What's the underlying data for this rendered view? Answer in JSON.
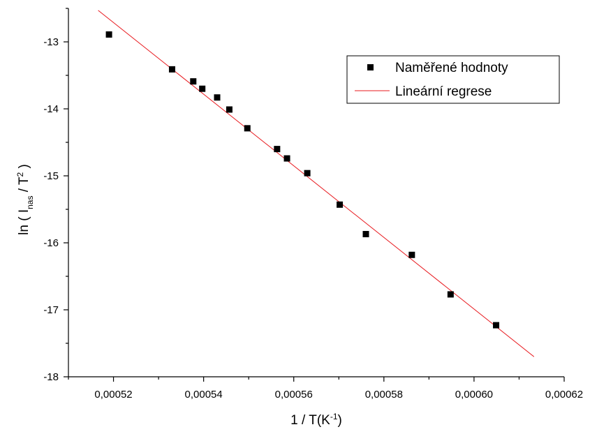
{
  "chart_data": {
    "type": "scatter",
    "xlabel": {
      "base": "1 / T(K",
      "sup": "-1",
      "end": ")"
    },
    "ylabel": {
      "base": "ln ( I",
      "sub": "nas",
      "mid": " / T",
      "sup": "2",
      "end": " )"
    },
    "xlim": [
      0.00051,
      0.00062
    ],
    "ylim": [
      -18,
      -12.5
    ],
    "x_ticks": [
      0.00052,
      0.00054,
      0.00056,
      0.00058,
      0.0006,
      0.00062
    ],
    "x_tick_labels": [
      "0,00052",
      "0,00054",
      "0,00056",
      "0,00058",
      "0,00060",
      "0,00062"
    ],
    "y_ticks": [
      -18,
      -17,
      -16,
      -15,
      -14,
      -13
    ],
    "y_tick_labels": [
      "-18",
      "-17",
      "-16",
      "-15",
      "-14",
      "-13"
    ],
    "grid": false,
    "legend_position": "top-right",
    "colors": {
      "points": "#000000",
      "line": "#e8191e"
    },
    "series": [
      {
        "name": "Naměřené hodnoty",
        "kind": "scatter",
        "x": [
          0.000519,
          0.000533,
          0.0005377,
          0.0005397,
          0.000543,
          0.0005457,
          0.0005497,
          0.0005563,
          0.0005585,
          0.000563,
          0.0005702,
          0.000576,
          0.0005862,
          0.0005948,
          0.0006049
        ],
        "y": [
          -12.89,
          -13.41,
          -13.59,
          -13.7,
          -13.83,
          -14.01,
          -14.29,
          -14.6,
          -14.74,
          -14.96,
          -15.43,
          -15.87,
          -16.18,
          -16.77,
          -17.23
        ]
      },
      {
        "name": "Lineární regrese",
        "kind": "line",
        "x": [
          0.0005166,
          0.0006133
        ],
        "y": [
          -12.53,
          -17.7
        ]
      }
    ]
  }
}
